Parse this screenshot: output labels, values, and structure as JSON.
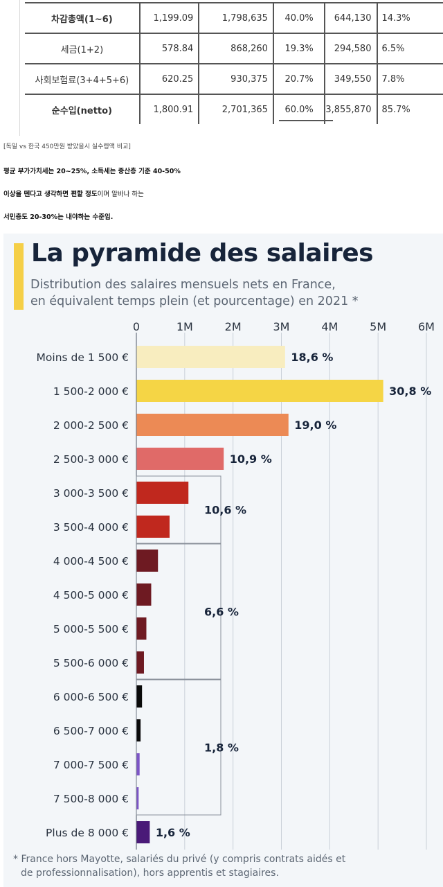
{
  "tax_table": {
    "rows": [
      {
        "label": "차감총액(1~6)",
        "c1": "1,199.09",
        "c2": "1,798,635",
        "c3": "40.0%",
        "c4": "644,130",
        "c5": "14.3%",
        "bold": true
      },
      {
        "label": "세금(1+2)",
        "c1": "578.84",
        "c2": "868,260",
        "c3": "19.3%",
        "c4": "294,580",
        "c5": "6.5%",
        "bold": false
      },
      {
        "label": "사회보험료(3+4+5+6)",
        "c1": "620.25",
        "c2": "930,375",
        "c3": "20.7%",
        "c4": "349,550",
        "c5": "7.8%",
        "bold": false
      },
      {
        "label": "순수입(netto)",
        "c1": "1,800.91",
        "c2": "2,701,365",
        "c3": "60.0%",
        "c4": "3,855,870",
        "c5": "85.7%",
        "bold": true
      }
    ]
  },
  "post_text": {
    "caption": "[독일 vs 한국 450만원 받았을시 실수령액 비교]",
    "line1": "평균 부가가치세는 20~25%, 소득세는 중산층 기준 40-50%",
    "line2_bold": "이상을 뗀다고 생각하면 편할 정도",
    "line2_rest": "이며  알바나 하는",
    "line3": "서민층도 20-30%는 내야하는 수준임."
  },
  "chart_data": {
    "type": "bar",
    "orientation": "horizontal",
    "title": "La pyramide des salaires",
    "subtitle_line1": "Distribution des salaires mensuels nets en France,",
    "subtitle_line2": "en équivalent temps plein (et pourcentage) en 2021 *",
    "xlim": [
      0,
      6000000
    ],
    "x_ticks": [
      0,
      1000000,
      2000000,
      3000000,
      4000000,
      5000000,
      6000000
    ],
    "x_tick_labels": [
      "0",
      "1M",
      "2M",
      "3M",
      "4M",
      "5M",
      "6M"
    ],
    "grid": true,
    "categories": [
      "Moins de 1 500 €",
      "1 500-2 000 €",
      "2 000-2 500 €",
      "2 500-3 000 €",
      "3 000-3 500 €",
      "3 500-4 000 €",
      "4 000-4 500 €",
      "4 500-5 000 €",
      "5 000-5 500 €",
      "5 500-6 000 €",
      "6 000-6 500 €",
      "6 500-7 000 €",
      "7 000-7 500 €",
      "7 500-8 000 €",
      "Plus de 8 000 €"
    ],
    "values": [
      3070000,
      5100000,
      3140000,
      1800000,
      1070000,
      680000,
      440000,
      300000,
      200000,
      150000,
      110000,
      80000,
      60000,
      40000,
      270000
    ],
    "colors": [
      "#f8edbf",
      "#f5d545",
      "#ec8a55",
      "#e06a68",
      "#c0281e",
      "#c0281e",
      "#6e1a22",
      "#6e1a22",
      "#6e1a22",
      "#6e1a22",
      "#0a0a0a",
      "#0a0a0a",
      "#7c55c6",
      "#7c55c6",
      "#4a1a78"
    ],
    "single_labels": [
      {
        "index": 0,
        "text": "18,6 %"
      },
      {
        "index": 1,
        "text": "30,8 %"
      },
      {
        "index": 2,
        "text": "19,0 %"
      },
      {
        "index": 3,
        "text": "10,9 %"
      },
      {
        "index": 14,
        "text": "1,6 %"
      }
    ],
    "group_labels": [
      {
        "from": 4,
        "to": 5,
        "text": "10,6 %"
      },
      {
        "from": 6,
        "to": 9,
        "text": "6,6 %"
      },
      {
        "from": 10,
        "to": 13,
        "text": "1,8 %"
      }
    ],
    "footnote_line1": "* France hors Mayotte, salariés du privé (y compris contrats aidés et",
    "footnote_line2": "de professionnalisation), hors apprentis et stagiaires."
  }
}
